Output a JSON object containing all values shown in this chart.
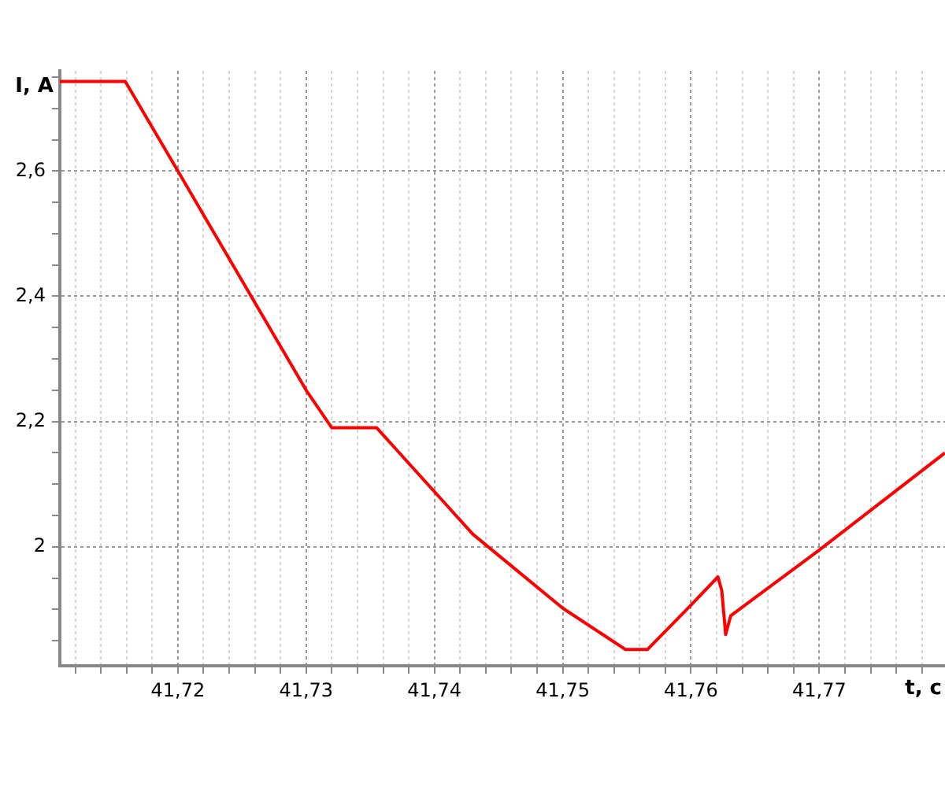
{
  "chart_data": {
    "type": "line",
    "xlabel": "t, c",
    "ylabel": "I, A",
    "grid": true,
    "legend": false,
    "marker": "none",
    "line_style": "solid",
    "xlim": [
      41.7108,
      41.7798
    ],
    "ylim": [
      1.81,
      2.76
    ],
    "xticks": [
      {
        "value": 41.712,
        "label": null
      },
      {
        "value": 41.714,
        "label": null
      },
      {
        "value": 41.716,
        "label": null
      },
      {
        "value": 41.718,
        "label": null
      },
      {
        "value": 41.72,
        "label": "41,72"
      },
      {
        "value": 41.722,
        "label": null
      },
      {
        "value": 41.724,
        "label": null
      },
      {
        "value": 41.726,
        "label": null
      },
      {
        "value": 41.728,
        "label": null
      },
      {
        "value": 41.73,
        "label": "41,73"
      },
      {
        "value": 41.732,
        "label": null
      },
      {
        "value": 41.734,
        "label": null
      },
      {
        "value": 41.736,
        "label": null
      },
      {
        "value": 41.738,
        "label": null
      },
      {
        "value": 41.74,
        "label": "41,74"
      },
      {
        "value": 41.742,
        "label": null
      },
      {
        "value": 41.744,
        "label": null
      },
      {
        "value": 41.746,
        "label": null
      },
      {
        "value": 41.748,
        "label": null
      },
      {
        "value": 41.75,
        "label": "41,75"
      },
      {
        "value": 41.752,
        "label": null
      },
      {
        "value": 41.754,
        "label": null
      },
      {
        "value": 41.756,
        "label": null
      },
      {
        "value": 41.758,
        "label": null
      },
      {
        "value": 41.76,
        "label": "41,76"
      },
      {
        "value": 41.762,
        "label": null
      },
      {
        "value": 41.764,
        "label": null
      },
      {
        "value": 41.766,
        "label": null
      },
      {
        "value": 41.768,
        "label": null
      },
      {
        "value": 41.77,
        "label": "41,77"
      },
      {
        "value": 41.772,
        "label": null
      },
      {
        "value": 41.774,
        "label": null
      },
      {
        "value": 41.776,
        "label": null
      },
      {
        "value": 41.778,
        "label": null
      }
    ],
    "yticks": [
      {
        "value": 1.85,
        "label": null
      },
      {
        "value": 1.9,
        "label": null
      },
      {
        "value": 1.95,
        "label": null
      },
      2,
      {
        "value": 2.05,
        "label": null
      },
      {
        "value": 2.1,
        "label": null
      },
      {
        "value": 2.15,
        "label": null
      },
      {
        "value": 2.2,
        "label": "2,2"
      },
      {
        "value": 2.25,
        "label": null
      },
      {
        "value": 2.3,
        "label": null
      },
      {
        "value": 2.35,
        "label": null
      },
      {
        "value": 2.4,
        "label": "2,4"
      },
      {
        "value": 2.45,
        "label": null
      },
      {
        "value": 2.5,
        "label": null
      },
      {
        "value": 2.55,
        "label": null
      },
      {
        "value": 2.6,
        "label": "2,6"
      },
      {
        "value": 2.65,
        "label": null
      },
      {
        "value": 2.7,
        "label": null
      },
      {
        "value": 2.75,
        "label": null
      }
    ],
    "x": [
      41.7108,
      41.7159,
      41.72,
      41.73,
      41.732,
      41.7355,
      41.74,
      41.743,
      41.75,
      41.7549,
      41.7566,
      41.76,
      41.7621,
      41.7624,
      41.7627,
      41.7631,
      41.77,
      41.7798
    ],
    "series": [
      {
        "color": "#ff0000",
        "values": [
          2.743,
          2.743,
          2.6,
          2.25,
          2.19,
          2.19,
          2.088,
          2.02,
          1.902,
          1.836,
          1.836,
          1.907,
          1.952,
          1.93,
          1.86,
          1.89,
          1.995,
          2.15
        ]
      }
    ]
  }
}
